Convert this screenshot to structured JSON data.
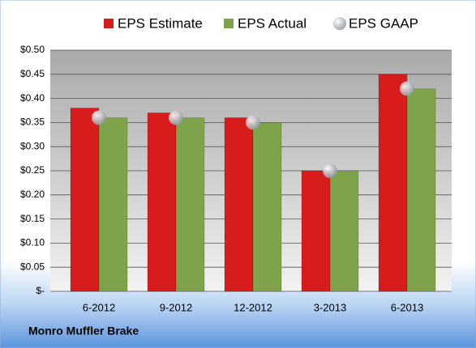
{
  "chart_data": {
    "type": "bar",
    "categories": [
      "6-2012",
      "9-2012",
      "12-2012",
      "3-2013",
      "6-2013"
    ],
    "series": [
      {
        "name": "EPS Estimate",
        "color": "#d81b1b",
        "values": [
          0.38,
          0.37,
          0.36,
          0.25,
          0.45
        ]
      },
      {
        "name": "EPS Actual",
        "color": "#7fa34a",
        "values": [
          0.36,
          0.36,
          0.35,
          0.25,
          0.42
        ]
      },
      {
        "name": "EPS GAAP",
        "color": "#a8aeb6",
        "values": [
          0.36,
          0.36,
          0.35,
          0.25,
          0.42
        ],
        "marker": "circle"
      }
    ],
    "ylim": [
      0,
      0.5
    ],
    "yticks": [
      {
        "value": 0,
        "label": "$-"
      },
      {
        "value": 0.05,
        "label": "$0.05"
      },
      {
        "value": 0.1,
        "label": "$0.10"
      },
      {
        "value": 0.15,
        "label": "$0.15"
      },
      {
        "value": 0.2,
        "label": "$0.20"
      },
      {
        "value": 0.25,
        "label": "$0.25"
      },
      {
        "value": 0.3,
        "label": "$0.30"
      },
      {
        "value": 0.35,
        "label": "$0.35"
      },
      {
        "value": 0.4,
        "label": "$0.40"
      },
      {
        "value": 0.45,
        "label": "$0.45"
      },
      {
        "value": 0.5,
        "label": "$0.50"
      }
    ],
    "grid": true,
    "legend": "top",
    "footer": "Monro Muffler Brake"
  }
}
